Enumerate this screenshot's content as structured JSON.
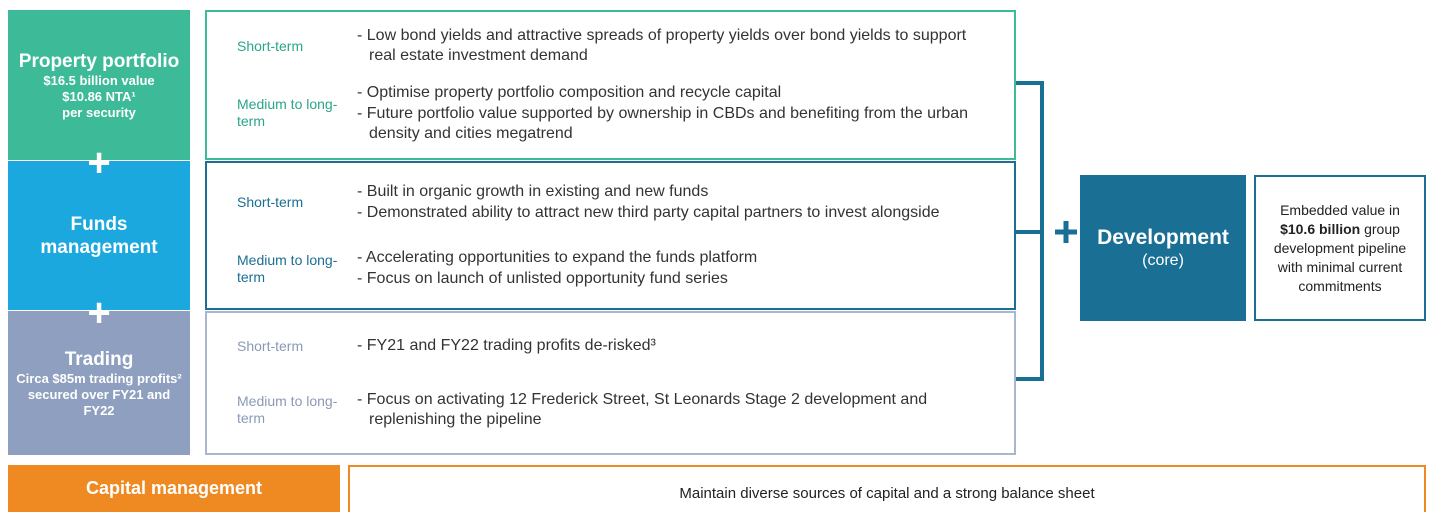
{
  "pillars": [
    {
      "title": "Property portfolio",
      "details": [
        "$16.5 billion value",
        "$10.86 NTA¹",
        "per security"
      ],
      "horizons": [
        {
          "label": "Short-term",
          "points": [
            "Low bond yields and attractive spreads of property yields over bond yields to support real estate investment demand"
          ]
        },
        {
          "label": "Medium to long-term",
          "points": [
            "Optimise property portfolio composition and recycle capital",
            "Future portfolio value supported by ownership in CBDs and benefiting from the urban density and cities megatrend"
          ]
        }
      ]
    },
    {
      "title": "Funds management",
      "details": [],
      "horizons": [
        {
          "label": "Short-term",
          "points": [
            "Built in organic growth in existing and new funds",
            "Demonstrated ability to attract new third party capital partners to invest alongside"
          ]
        },
        {
          "label": "Medium to long-term",
          "points": [
            "Accelerating opportunities to expand the funds platform",
            "Focus on launch of unlisted opportunity fund series"
          ]
        }
      ]
    },
    {
      "title": "Trading",
      "details": [
        "Circa $85m trading profits² secured over FY21 and FY22"
      ],
      "horizons": [
        {
          "label": "Short-term",
          "points": [
            "FY21 and FY22 trading profits de-risked³"
          ]
        },
        {
          "label": "Medium to long-term",
          "points": [
            "Focus on activating 12 Frederick Street, St Leonards Stage 2 development and replenishing the pipeline"
          ]
        }
      ]
    }
  ],
  "development": {
    "title": "Development",
    "subtitle": "(core)",
    "description": {
      "before": "Embedded value in",
      "bold": "$10.6 billion",
      "after": "group development pipeline with minimal current commitments"
    }
  },
  "capital": {
    "title": "Capital management",
    "text": "Maintain diverse sources of capital and a strong balance sheet"
  }
}
